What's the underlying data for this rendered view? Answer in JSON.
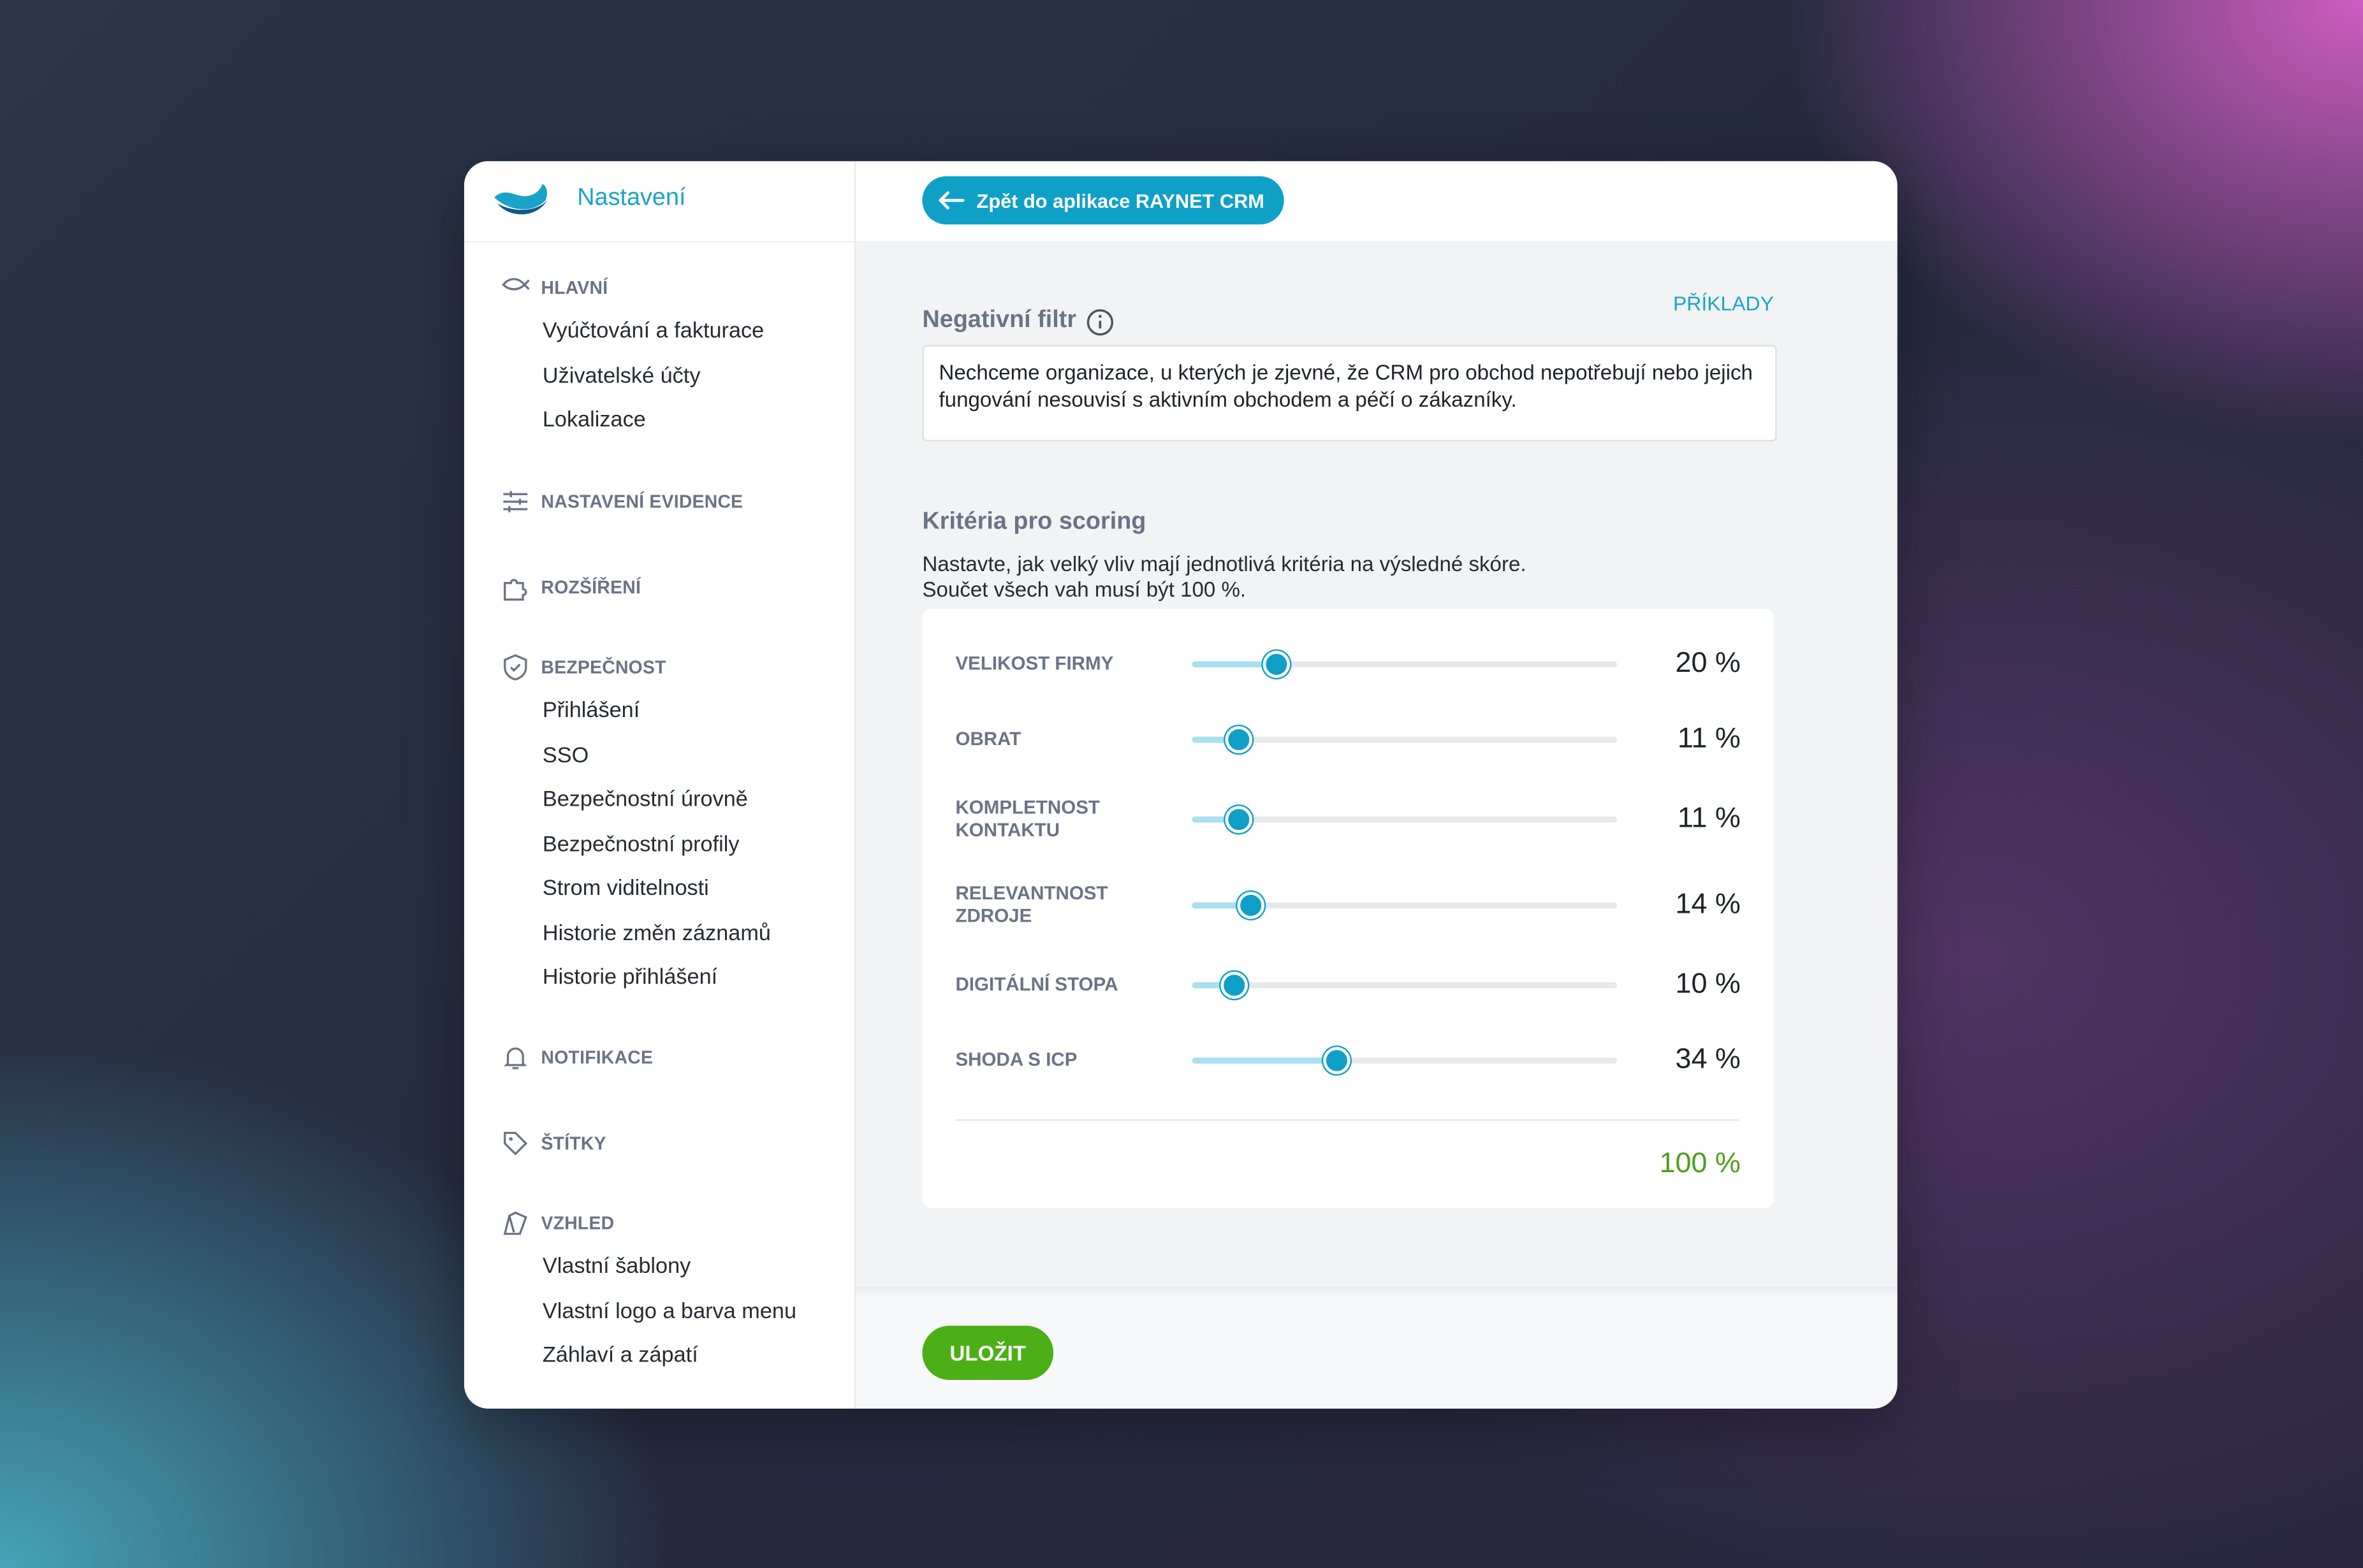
{
  "header": {
    "title": "Nastavení",
    "back_button": "Zpět do aplikace RAYNET CRM"
  },
  "sidebar": {
    "sections": [
      {
        "title": "HLAVNÍ",
        "items": [
          "Vyúčtování a fakturace",
          "Uživatelské účty",
          "Lokalizace"
        ]
      },
      {
        "title": "NASTAVENÍ EVIDENCE",
        "items": []
      },
      {
        "title": "ROZŠÍŘENÍ",
        "items": []
      },
      {
        "title": "BEZPEČNOST",
        "items": [
          "Přihlášení",
          "SSO",
          "Bezpečnostní úrovně",
          "Bezpečnostní profily",
          "Strom viditelnosti",
          "Historie změn záznamů",
          "Historie přihlášení"
        ]
      },
      {
        "title": "NOTIFIKACE",
        "items": []
      },
      {
        "title": "ŠTÍTKY",
        "items": []
      },
      {
        "title": "VZHLED",
        "items": [
          "Vlastní šablony",
          "Vlastní logo a barva menu",
          "Záhlaví a zápatí"
        ]
      }
    ]
  },
  "negative_filter": {
    "title": "Negativní filtr",
    "examples_link": "PŘÍKLADY",
    "text": "Nechceme organizace, u kterých je zjevné, že CRM pro obchod nepotřebují nebo jejich fungování nesouvisí s aktivním obchodem a péčí o zákazníky."
  },
  "scoring": {
    "title": "Kritéria pro scoring",
    "description": [
      "Nastavte, jak velký vliv mají jednotlivá kritéria na výsledné skóre.",
      "Součet všech vah musí být 100 %."
    ],
    "criteria": [
      {
        "label": "VELIKOST FIRMY",
        "value": 20,
        "value_label": "20 %"
      },
      {
        "label": "OBRAT",
        "value": 11,
        "value_label": "11 %"
      },
      {
        "label": "KOMPLETNOST KONTAKTU",
        "value": 11,
        "value_label": "11 %"
      },
      {
        "label": "RELEVANTNOST ZDROJE",
        "value": 14,
        "value_label": "14 %"
      },
      {
        "label": "DIGITÁLNÍ STOPA",
        "value": 10,
        "value_label": "10 %"
      },
      {
        "label": "SHODA S ICP",
        "value": 34,
        "value_label": "34 %"
      }
    ],
    "total": "100 %"
  },
  "footer": {
    "save_button": "ULOŽIT"
  }
}
